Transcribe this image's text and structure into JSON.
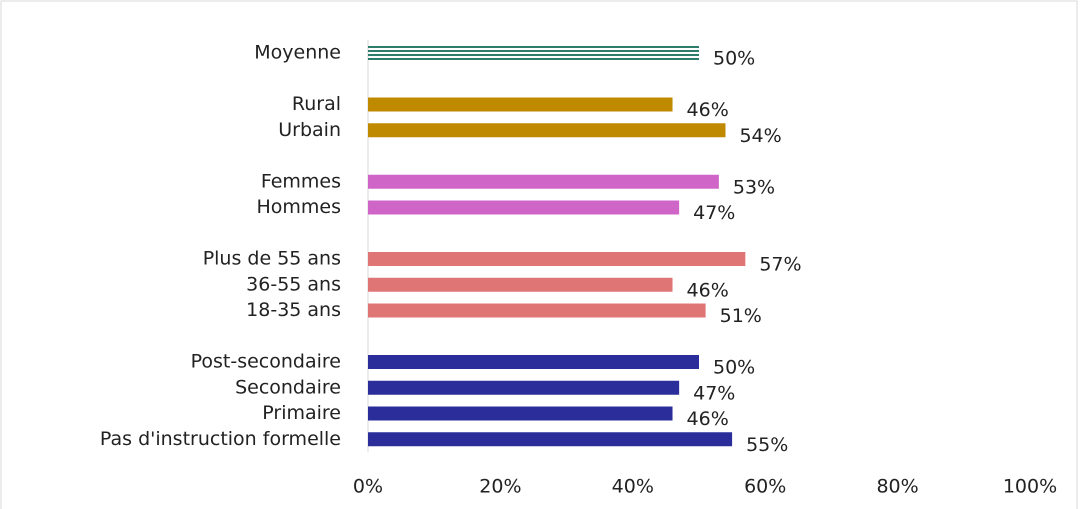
{
  "chart_data": {
    "type": "barh",
    "categories": [
      "Moyenne",
      null,
      "Rural",
      "Urbain ",
      null,
      "Femmes",
      "Hommes",
      null,
      "Plus de 55 ans",
      "36-55 ans",
      "18-35 ans",
      null,
      "Post-secondaire",
      "Secondaire",
      "Primaire",
      "Pas d'instruction formelle"
    ],
    "values": [
      50,
      null,
      46,
      54,
      null,
      53,
      47,
      null,
      57,
      46,
      51,
      null,
      50,
      47,
      46,
      55
    ],
    "value_labels": [
      "50%",
      null,
      "46%",
      "54%",
      null,
      "53%",
      "47%",
      null,
      "57%",
      "46%",
      "51%",
      null,
      "50%",
      "47%",
      "46%",
      "55%"
    ],
    "colors": [
      "#2e7d6b",
      null,
      "#c08a00",
      "#c08a00",
      null,
      "#d065c8",
      "#d065c8",
      null,
      "#e07575",
      "#e07575",
      "#e07575",
      null,
      "#2a2d9a",
      "#2a2d9a",
      "#2a2d9a",
      "#2a2d9a"
    ],
    "patterns": [
      "striped",
      null,
      "solid",
      "solid",
      null,
      "solid",
      "solid",
      null,
      "solid",
      "solid",
      "solid",
      null,
      "solid",
      "solid",
      "solid",
      "solid"
    ],
    "xlim": [
      0,
      100
    ],
    "xticks": [
      {
        "value": 0,
        "label": "0%"
      },
      {
        "value": 20,
        "label": "20%"
      },
      {
        "value": 40,
        "label": "40%"
      },
      {
        "value": 60,
        "label": "60%"
      },
      {
        "value": 80,
        "label": "80%"
      },
      {
        "value": 100,
        "label": "100%"
      }
    ],
    "grid": false
  }
}
